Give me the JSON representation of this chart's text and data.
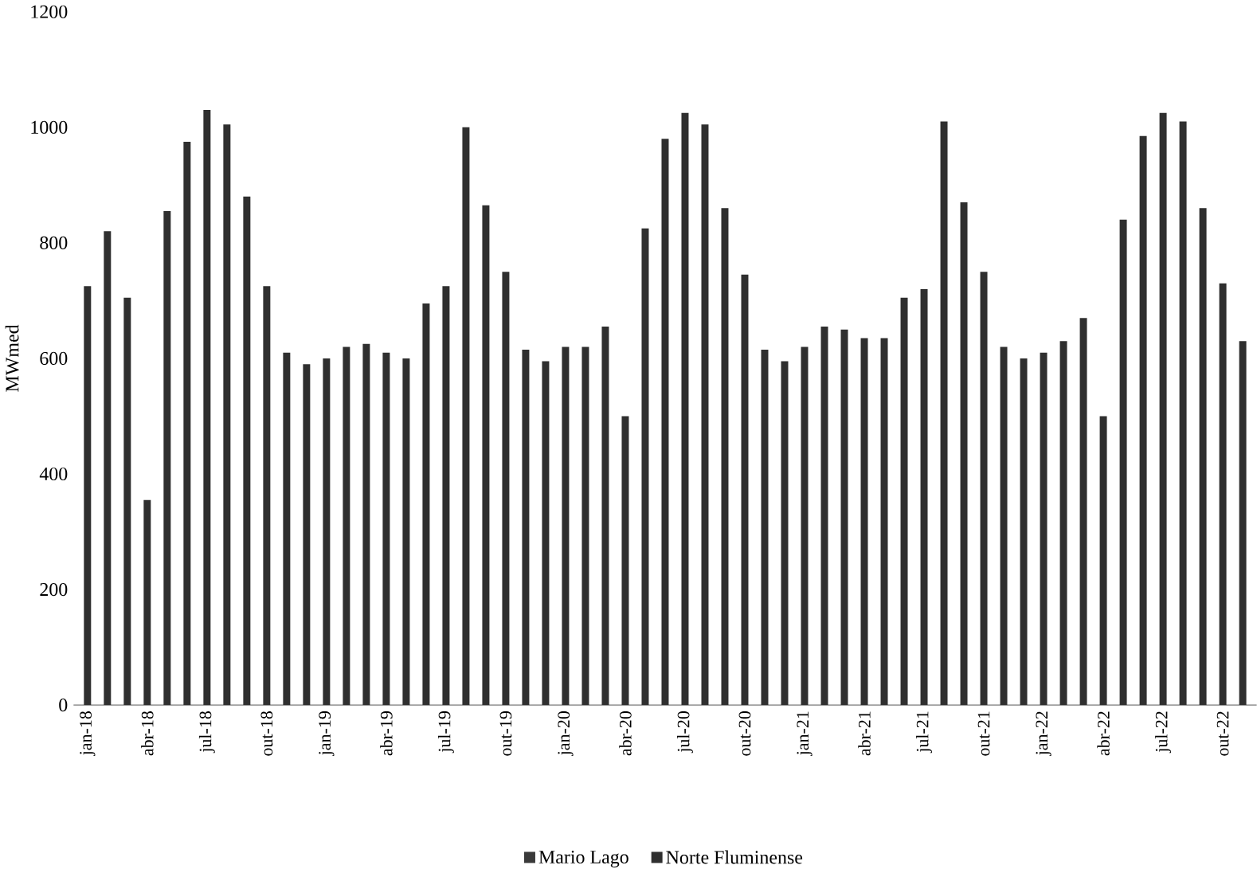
{
  "chart_data": {
    "type": "bar",
    "stacked": true,
    "ylabel": "MWmed",
    "categories": [
      "jan-18",
      null,
      null,
      "abr-18",
      null,
      null,
      "jul-18",
      null,
      null,
      "out-18",
      null,
      null,
      "jan-19",
      null,
      null,
      "abr-19",
      null,
      null,
      "jul-19",
      null,
      null,
      "out-19",
      null,
      null,
      "jan-20",
      null,
      null,
      "abr-20",
      null,
      null,
      "jul-20",
      null,
      null,
      "out-20",
      null,
      null,
      "jan-21",
      null,
      null,
      "abr-21",
      null,
      null,
      "jul-21",
      null,
      null,
      "out-21",
      null,
      null,
      "jan-22",
      null,
      null,
      "abr-22",
      null,
      null,
      "jul-22",
      null,
      null,
      "out-22",
      null
    ],
    "series": [
      {
        "name": "Mario Lago",
        "color": "#3a3a3a",
        "values": [
          null,
          null,
          null,
          null,
          null,
          null,
          null,
          null,
          null,
          null,
          null,
          null,
          null,
          null,
          null,
          null,
          null,
          null,
          null,
          null,
          null,
          null,
          null,
          null,
          null,
          null,
          null,
          null,
          null,
          null,
          null,
          null,
          null,
          null,
          null,
          null,
          null,
          null,
          null,
          null,
          null,
          null,
          null,
          null,
          null,
          null,
          null,
          null,
          null,
          null,
          null,
          null,
          null,
          null,
          null,
          null,
          null,
          null,
          null
        ]
      },
      {
        "name": "Norte Fluminense",
        "color": "#2f2f2f",
        "values": [
          725,
          820,
          705,
          355,
          855,
          975,
          1030,
          1005,
          880,
          725,
          610,
          590,
          600,
          620,
          625,
          610,
          600,
          695,
          725,
          1000,
          865,
          750,
          615,
          595,
          620,
          620,
          655,
          500,
          825,
          980,
          1025,
          1005,
          860,
          745,
          615,
          595,
          620,
          655,
          650,
          635,
          635,
          705,
          720,
          1010,
          870,
          750,
          620,
          600,
          610,
          630,
          670,
          500,
          840,
          985,
          1025,
          1010,
          860,
          730,
          630
        ]
      }
    ],
    "ylim": [
      0,
      1200
    ],
    "yticks": [
      0,
      200,
      400,
      600,
      800,
      1000,
      1200
    ],
    "grid": false,
    "legend": "bottom"
  }
}
